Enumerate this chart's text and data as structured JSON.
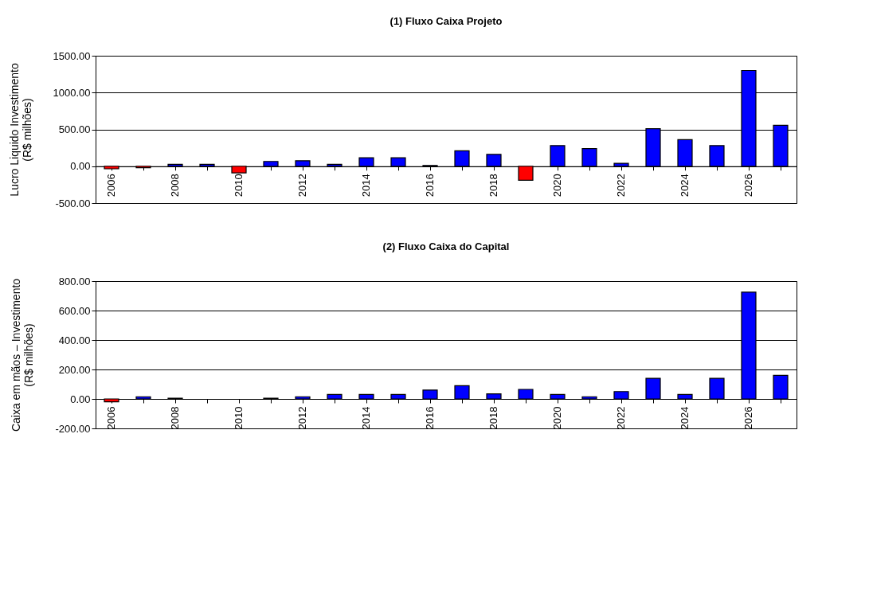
{
  "chart_data": [
    {
      "type": "bar",
      "title": "(1) Fluxo Caixa Projeto",
      "ylabel": "Lucro Liquido Investimento\n(R$ milhões)",
      "categories": [
        "2006",
        null,
        "2008",
        null,
        "2010",
        null,
        "2012",
        null,
        "2014",
        null,
        "2016",
        null,
        "2018",
        null,
        "2020",
        null,
        "2022",
        null,
        "2024",
        null,
        "2026",
        null
      ],
      "values": [
        -35,
        -20,
        25,
        25,
        -90,
        65,
        75,
        25,
        115,
        115,
        10,
        210,
        160,
        -190,
        280,
        240,
        40,
        510,
        360,
        280,
        1300,
        555
      ],
      "colors": [
        "#ff0000",
        "#ff0000",
        "#0000ff",
        "#0000ff",
        "#ff0000",
        "#0000ff",
        "#0000ff",
        "#0000ff",
        "#0000ff",
        "#0000ff",
        "#0000ff",
        "#0000ff",
        "#0000ff",
        "#ff0000",
        "#0000ff",
        "#0000ff",
        "#0000ff",
        "#0000ff",
        "#0000ff",
        "#0000ff",
        "#0000ff",
        "#0000ff"
      ],
      "ylim": [
        -500,
        1500
      ],
      "yticks": [
        {
          "value": -500,
          "label": "-500.00"
        },
        {
          "value": 0,
          "label": "0.00"
        },
        {
          "value": 500,
          "label": "500.00"
        },
        {
          "value": 1000,
          "label": "1000.00"
        },
        {
          "value": 1500,
          "label": "1500.00"
        }
      ],
      "grid": "y"
    },
    {
      "type": "bar",
      "title": "(2) Fluxo Caixa do Capital",
      "ylabel": "Caixa em mãos – Investimento\n(R$ milhões)",
      "categories": [
        "2006",
        null,
        "2008",
        null,
        "2010",
        null,
        "2012",
        null,
        "2014",
        null,
        "2016",
        null,
        "2018",
        null,
        "2020",
        null,
        "2022",
        null,
        "2024",
        null,
        "2026",
        null
      ],
      "values": [
        -20,
        15,
        5,
        null,
        null,
        5,
        15,
        30,
        30,
        30,
        60,
        90,
        35,
        65,
        30,
        15,
        50,
        140,
        30,
        140,
        725,
        160
      ],
      "colors": [
        "#ff0000",
        "#0000ff",
        "#0000ff",
        "#0000ff",
        "#0000ff",
        "#0000ff",
        "#0000ff",
        "#0000ff",
        "#0000ff",
        "#0000ff",
        "#0000ff",
        "#0000ff",
        "#0000ff",
        "#0000ff",
        "#0000ff",
        "#0000ff",
        "#0000ff",
        "#0000ff",
        "#0000ff",
        "#0000ff",
        "#0000ff",
        "#0000ff"
      ],
      "ylim": [
        -200,
        800
      ],
      "yticks": [
        {
          "value": -200,
          "label": "-200.00"
        },
        {
          "value": 0,
          "label": "0.00"
        },
        {
          "value": 200,
          "label": "200.00"
        },
        {
          "value": 400,
          "label": "400.00"
        },
        {
          "value": 600,
          "label": "600.00"
        },
        {
          "value": 800,
          "label": "800.00"
        }
      ],
      "grid": "y"
    }
  ]
}
